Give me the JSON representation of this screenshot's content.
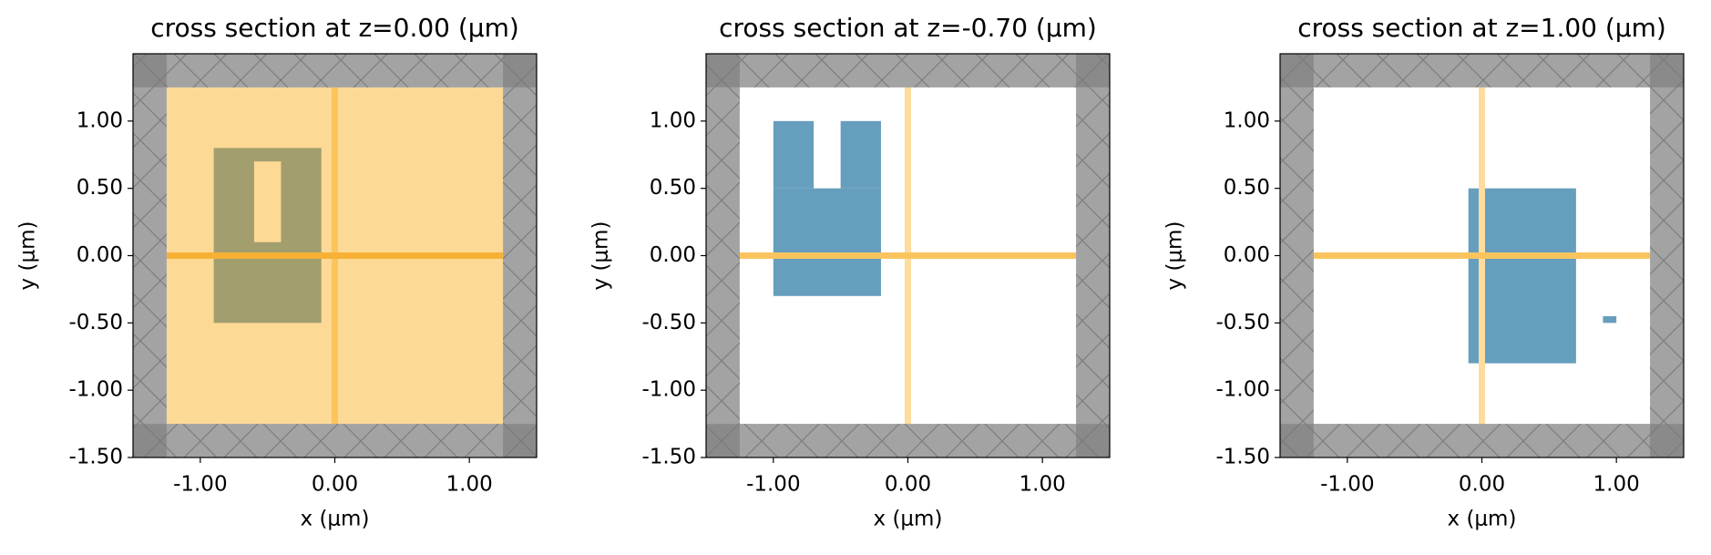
{
  "chart_data": [
    {
      "type": "section",
      "title": "cross section at z=0.00 (μm)",
      "xlabel": "x (μm)",
      "ylabel": "y (μm)",
      "xlim": [
        -1.5,
        1.5
      ],
      "ylim": [
        -1.5,
        1.5
      ],
      "xticks": [
        {
          "value": -1,
          "label": "-1.00"
        },
        {
          "value": 0,
          "label": "0.00"
        },
        {
          "value": 1,
          "label": "1.00"
        }
      ],
      "yticks": [
        {
          "value": -1.5,
          "label": "-1.50"
        },
        {
          "value": -1,
          "label": "-1.00"
        },
        {
          "value": -0.5,
          "label": "-0.50"
        },
        {
          "value": 0,
          "label": "0.00"
        },
        {
          "value": 0.5,
          "label": "0.50"
        },
        {
          "value": 1,
          "label": "1.00"
        }
      ],
      "simulation_bounds": [
        -1.25,
        1.25
      ],
      "regions": [
        {
          "color": "#fdd996",
          "x": [
            -1.25,
            1.25
          ],
          "y": [
            -1.25,
            1.25
          ]
        },
        {
          "color": "#a39e6e",
          "x": [
            -0.9,
            -0.1
          ],
          "y": [
            -0.5,
            0.8
          ]
        },
        {
          "color": "#fdd996",
          "x": [
            -0.6,
            -0.4
          ],
          "y": [
            0.1,
            0.7
          ]
        }
      ],
      "lines": [
        {
          "orient": "x",
          "value": 0,
          "color": "#fbc45c"
        },
        {
          "orient": "y",
          "value": 0,
          "color": "#f6b135"
        }
      ]
    },
    {
      "type": "section",
      "title": "cross section at z=-0.70 (μm)",
      "xlabel": "x (μm)",
      "ylabel": "y (μm)",
      "xlim": [
        -1.5,
        1.5
      ],
      "ylim": [
        -1.5,
        1.5
      ],
      "xticks": [
        {
          "value": -1,
          "label": "-1.00"
        },
        {
          "value": 0,
          "label": "0.00"
        },
        {
          "value": 1,
          "label": "1.00"
        }
      ],
      "yticks": [
        {
          "value": -1.5,
          "label": "-1.50"
        },
        {
          "value": -1,
          "label": "-1.00"
        },
        {
          "value": -0.5,
          "label": "-0.50"
        },
        {
          "value": 0,
          "label": "0.00"
        },
        {
          "value": 0.5,
          "label": "0.50"
        },
        {
          "value": 1,
          "label": "1.00"
        }
      ],
      "simulation_bounds": [
        -1.25,
        1.25
      ],
      "regions": [
        {
          "color": "#669ebd",
          "x": [
            -1.0,
            -0.2
          ],
          "y": [
            -0.3,
            0.5
          ]
        },
        {
          "color": "#669ebd",
          "x": [
            -1.0,
            -0.7
          ],
          "y": [
            0.5,
            1.0
          ]
        },
        {
          "color": "#669ebd",
          "x": [
            -0.5,
            -0.2
          ],
          "y": [
            0.5,
            1.0
          ]
        }
      ],
      "lines": [
        {
          "orient": "x",
          "value": 0,
          "color": "#fddc9e"
        },
        {
          "orient": "y",
          "value": 0,
          "color": "#f9c45e"
        }
      ]
    },
    {
      "type": "section",
      "title": "cross section at z=1.00 (μm)",
      "xlabel": "x (μm)",
      "ylabel": "y (μm)",
      "xlim": [
        -1.5,
        1.5
      ],
      "ylim": [
        -1.5,
        1.5
      ],
      "xticks": [
        {
          "value": -1,
          "label": "-1.00"
        },
        {
          "value": 0,
          "label": "0.00"
        },
        {
          "value": 1,
          "label": "1.00"
        }
      ],
      "yticks": [
        {
          "value": -1.5,
          "label": "-1.50"
        },
        {
          "value": -1,
          "label": "-1.00"
        },
        {
          "value": -0.5,
          "label": "-0.50"
        },
        {
          "value": 0,
          "label": "0.00"
        },
        {
          "value": 0.5,
          "label": "0.50"
        },
        {
          "value": 1,
          "label": "1.00"
        }
      ],
      "simulation_bounds": [
        -1.25,
        1.25
      ],
      "regions": [
        {
          "color": "#669ebd",
          "x": [
            -0.1,
            0.7
          ],
          "y": [
            -0.8,
            0.5
          ]
        },
        {
          "color": "#669ebd",
          "x": [
            0.9,
            1.0
          ],
          "y": [
            -0.5,
            -0.45
          ]
        }
      ],
      "lines": [
        {
          "orient": "x",
          "value": 0,
          "color": "#fddc9e"
        },
        {
          "orient": "y",
          "value": 0,
          "color": "#f9c45e"
        }
      ]
    }
  ]
}
